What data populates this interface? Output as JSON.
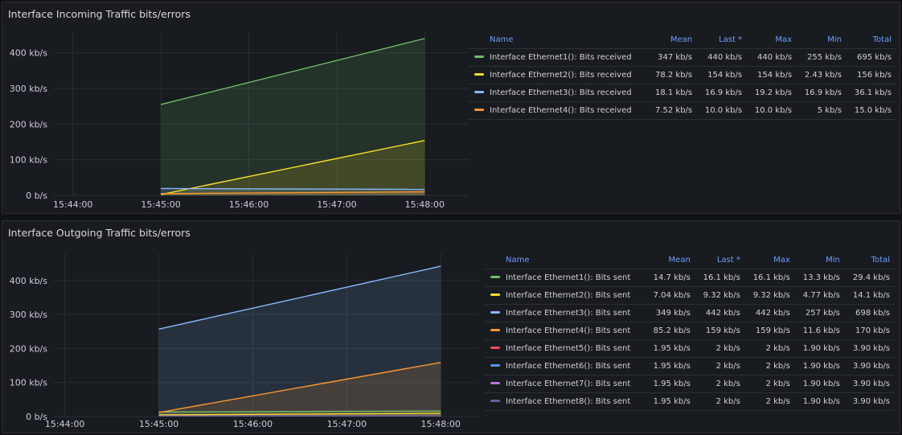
{
  "panels": [
    {
      "title": "Interface Incoming Traffic bits/errors",
      "columns": [
        "Name",
        "Mean",
        "Last *",
        "Max",
        "Min",
        "Total"
      ],
      "legend_rows": [
        {
          "color": "#73bf69",
          "name": "Interface Ethernet1(): Bits received",
          "mean": "347 kb/s",
          "last": "440 kb/s",
          "max": "440 kb/s",
          "min": "255 kb/s",
          "total": "695 kb/s"
        },
        {
          "color": "#fade2a",
          "name": "Interface Ethernet2(): Bits received",
          "mean": "78.2 kb/s",
          "last": "154 kb/s",
          "max": "154 kb/s",
          "min": "2.43 kb/s",
          "total": "156 kb/s"
        },
        {
          "color": "#8ab8ff",
          "name": "Interface Ethernet3(): Bits received",
          "mean": "18.1 kb/s",
          "last": "16.9 kb/s",
          "max": "19.2 kb/s",
          "min": "16.9 kb/s",
          "total": "36.1 kb/s"
        },
        {
          "color": "#ff9830",
          "name": "Interface Ethernet4(): Bits received",
          "mean": "7.52 kb/s",
          "last": "10.0 kb/s",
          "max": "10.0 kb/s",
          "min": "5 kb/s",
          "total": "15.0 kb/s"
        }
      ]
    },
    {
      "title": "Interface Outgoing Traffic bits/errors",
      "columns": [
        "Name",
        "Mean",
        "Last *",
        "Max",
        "Min",
        "Total"
      ],
      "legend_rows": [
        {
          "color": "#73bf69",
          "name": "Interface Ethernet1(): Bits sent",
          "mean": "14.7 kb/s",
          "last": "16.1 kb/s",
          "max": "16.1 kb/s",
          "min": "13.3 kb/s",
          "total": "29.4 kb/s"
        },
        {
          "color": "#fade2a",
          "name": "Interface Ethernet2(): Bits sent",
          "mean": "7.04 kb/s",
          "last": "9.32 kb/s",
          "max": "9.32 kb/s",
          "min": "4.77 kb/s",
          "total": "14.1 kb/s"
        },
        {
          "color": "#8ab8ff",
          "name": "Interface Ethernet3(): Bits sent",
          "mean": "349 kb/s",
          "last": "442 kb/s",
          "max": "442 kb/s",
          "min": "257 kb/s",
          "total": "698 kb/s"
        },
        {
          "color": "#ff9830",
          "name": "Interface Ethernet4(): Bits sent",
          "mean": "85.2 kb/s",
          "last": "159 kb/s",
          "max": "159 kb/s",
          "min": "11.6 kb/s",
          "total": "170 kb/s"
        },
        {
          "color": "#f2495c",
          "name": "Interface Ethernet5(): Bits sent",
          "mean": "1.95 kb/s",
          "last": "2 kb/s",
          "max": "2 kb/s",
          "min": "1.90 kb/s",
          "total": "3.90 kb/s"
        },
        {
          "color": "#5794f2",
          "name": "Interface Ethernet6(): Bits sent",
          "mean": "1.95 kb/s",
          "last": "2 kb/s",
          "max": "2 kb/s",
          "min": "1.90 kb/s",
          "total": "3.90 kb/s"
        },
        {
          "color": "#b877d9",
          "name": "Interface Ethernet7(): Bits sent",
          "mean": "1.95 kb/s",
          "last": "2 kb/s",
          "max": "2 kb/s",
          "min": "1.90 kb/s",
          "total": "3.90 kb/s"
        },
        {
          "color": "#705da0",
          "name": "Interface Ethernet8(): Bits sent",
          "mean": "1.95 kb/s",
          "last": "2 kb/s",
          "max": "2 kb/s",
          "min": "1.90 kb/s",
          "total": "3.90 kb/s"
        }
      ]
    }
  ],
  "chart_data": [
    {
      "type": "area",
      "title": "Interface Incoming Traffic bits/errors",
      "y_unit": "kb/s",
      "yticks": [
        "400 kb/s",
        "300 kb/s",
        "200 kb/s",
        "100 kb/s",
        "0 b/s"
      ],
      "ylim": [
        0,
        460
      ],
      "xticks": [
        "15:44:00",
        "15:45:00",
        "15:46:00",
        "15:47:00",
        "15:48:00"
      ],
      "x_range": [
        "15:43:47",
        "15:48:30"
      ],
      "grid": true,
      "legend_placement": "right",
      "series": [
        {
          "name": "Interface Ethernet1(): Bits received",
          "color": "#73bf69",
          "x": [
            "15:45:00",
            "15:48:00"
          ],
          "values": [
            255,
            440
          ]
        },
        {
          "name": "Interface Ethernet2(): Bits received",
          "color": "#fade2a",
          "x": [
            "15:45:00",
            "15:48:00"
          ],
          "values": [
            2.43,
            154
          ]
        },
        {
          "name": "Interface Ethernet3(): Bits received",
          "color": "#8ab8ff",
          "x": [
            "15:45:00",
            "15:48:00"
          ],
          "values": [
            19.2,
            16.9
          ]
        },
        {
          "name": "Interface Ethernet4(): Bits received",
          "color": "#ff9830",
          "x": [
            "15:45:00",
            "15:48:00"
          ],
          "values": [
            5,
            10.0
          ]
        }
      ]
    },
    {
      "type": "area",
      "title": "Interface Outgoing Traffic bits/errors",
      "y_unit": "kb/s",
      "yticks": [
        "400 kb/s",
        "300 kb/s",
        "200 kb/s",
        "100 kb/s",
        "0 b/s"
      ],
      "ylim": [
        0,
        480
      ],
      "xticks": [
        "15:44:00",
        "15:45:00",
        "15:46:00",
        "15:47:00",
        "15:48:00"
      ],
      "x_range": [
        "15:43:53",
        "15:48:24"
      ],
      "grid": true,
      "legend_placement": "right",
      "series": [
        {
          "name": "Interface Ethernet1(): Bits sent",
          "color": "#73bf69",
          "x": [
            "15:45:00",
            "15:48:00"
          ],
          "values": [
            13.3,
            16.1
          ]
        },
        {
          "name": "Interface Ethernet2(): Bits sent",
          "color": "#fade2a",
          "x": [
            "15:45:00",
            "15:48:00"
          ],
          "values": [
            4.77,
            9.32
          ]
        },
        {
          "name": "Interface Ethernet3(): Bits sent",
          "color": "#8ab8ff",
          "x": [
            "15:45:00",
            "15:48:00"
          ],
          "values": [
            257,
            442
          ]
        },
        {
          "name": "Interface Ethernet4(): Bits sent",
          "color": "#ff9830",
          "x": [
            "15:45:00",
            "15:48:00"
          ],
          "values": [
            11.6,
            159
          ]
        },
        {
          "name": "Interface Ethernet5(): Bits sent",
          "color": "#f2495c",
          "x": [
            "15:45:00",
            "15:48:00"
          ],
          "values": [
            1.9,
            2
          ]
        },
        {
          "name": "Interface Ethernet6(): Bits sent",
          "color": "#5794f2",
          "x": [
            "15:45:00",
            "15:48:00"
          ],
          "values": [
            1.9,
            2
          ]
        },
        {
          "name": "Interface Ethernet7(): Bits sent",
          "color": "#b877d9",
          "x": [
            "15:45:00",
            "15:48:00"
          ],
          "values": [
            1.9,
            2
          ]
        },
        {
          "name": "Interface Ethernet8(): Bits sent",
          "color": "#705da0",
          "x": [
            "15:45:00",
            "15:48:00"
          ],
          "values": [
            1.9,
            2
          ]
        }
      ]
    }
  ]
}
